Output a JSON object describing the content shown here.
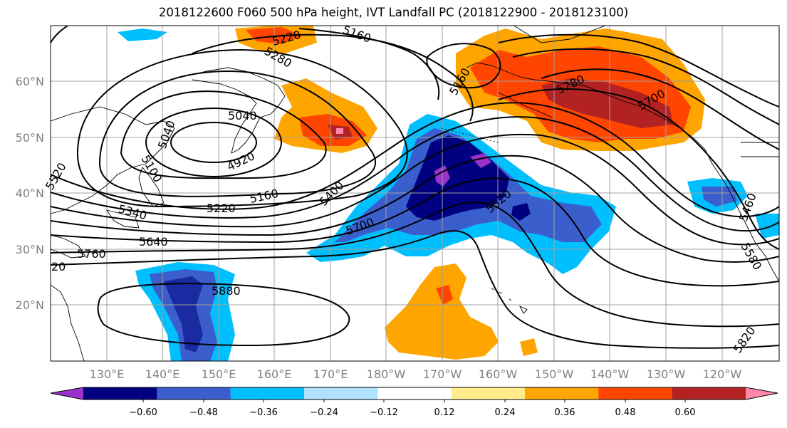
{
  "title": "2018122600 F060 500 hPa height, IVT Landfall PC (2018122900 - 2018123100)",
  "lat_labels": [
    "60°N",
    "50°N",
    "40°N",
    "30°N",
    "20°N"
  ],
  "lon_labels": [
    "130°E",
    "140°E",
    "150°E",
    "160°E",
    "170°E",
    "180°W",
    "170°W",
    "160°W",
    "150°W",
    "140°W",
    "130°W",
    "120°W"
  ],
  "contour_labels": [
    "5220",
    "5160",
    "5280",
    "5280",
    "5160",
    "5040",
    "4920",
    "5100",
    "5040",
    "5220",
    "5160",
    "5340",
    "5400",
    "5520",
    "5640",
    "5700",
    "5760",
    "5880",
    "5820",
    "5460",
    "5580",
    "5700",
    "5520",
    "20"
  ],
  "colorbar": {
    "ticks": [
      "−0.60",
      "−0.48",
      "−0.36",
      "−0.24",
      "−0.12",
      "0.12",
      "0.24",
      "0.36",
      "0.48",
      "0.60"
    ],
    "colors": [
      "#9933cc",
      "#000080",
      "#3a5fcd",
      "#00bfff",
      "#b0e2ff",
      "#ffffff",
      "#ffec8b",
      "#ffa500",
      "#ff4500",
      "#b22222",
      "#ff88aa"
    ]
  },
  "palette": {
    "neg_purple": "#9933cc",
    "neg_navy": "#000080",
    "neg_blue": "#3a5fcd",
    "neg_sky": "#00bfff",
    "neg_light": "#b0e2ff",
    "pos_yellow": "#ffec8b",
    "pos_orange": "#ffa500",
    "pos_red": "#ff4500",
    "pos_darkred": "#b22222",
    "pos_pink": "#ff88aa"
  }
}
